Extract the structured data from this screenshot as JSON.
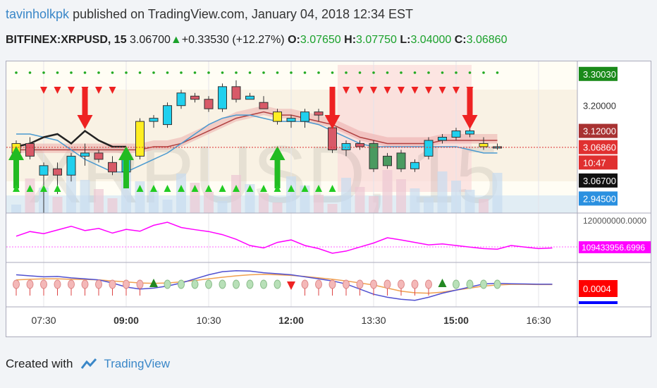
{
  "header": {
    "author": "tavinholkpk",
    "published": " published on TradingView.com, January 04, 2018 12:34 EST"
  },
  "symbol": {
    "name": "BITFINEX:XRPUSD, 15",
    "last": "3.06700",
    "change": "+0.33530 (+12.27%)",
    "open_label": "O:",
    "open": "3.07650",
    "high_label": "H:",
    "high": "3.07750",
    "low_label": "L:",
    "low": "3.04000",
    "close_label": "C:",
    "close": "3.06860"
  },
  "watermark": "XRPUSD, 15",
  "price_axis": {
    "labels": [
      {
        "text": "3.30030",
        "price": 3.3003,
        "style": "green"
      },
      {
        "text": "3.20000",
        "price": 3.2,
        "style": "plain"
      },
      {
        "text": "3.12000",
        "price": 3.12,
        "style": "darkred"
      },
      {
        "text": "3.06860",
        "price": 3.0686,
        "style": "red"
      },
      {
        "text": "10:47",
        "price": 3.02,
        "style": "red"
      },
      {
        "text": "3.06700",
        "price": 2.963,
        "style": "black"
      },
      {
        "text": "2.94500",
        "price": 2.906,
        "style": "blue"
      }
    ]
  },
  "volume_indicator": {
    "label": "120000000.0000",
    "value_label": "109433956.6996",
    "color": "#ff00ff",
    "values": [
      180,
      195,
      188,
      200,
      212,
      198,
      205,
      190,
      202,
      196,
      215,
      225,
      208,
      201,
      195,
      185,
      170,
      150,
      142,
      160,
      168,
      150,
      140,
      125,
      132,
      145,
      158,
      175,
      168,
      160,
      152,
      155,
      150,
      145,
      140,
      138,
      150,
      145,
      140,
      142
    ],
    "y_range": [
      100,
      250
    ]
  },
  "oscillator": {
    "value_label": "0.0004",
    "color": "#ff0000",
    "fast": [
      0.5,
      0.45,
      0.4,
      0.42,
      0.35,
      0.3,
      0.25,
      0.1,
      -0.1,
      -0.2,
      -0.15,
      -0.05,
      0.1,
      0.3,
      0.5,
      0.65,
      0.7,
      0.68,
      0.6,
      0.55,
      0.5,
      0.4,
      0.3,
      0.2,
      0.05,
      -0.2,
      -0.45,
      -0.6,
      -0.7,
      -0.75,
      -0.6,
      -0.4,
      -0.25,
      -0.1,
      0.05,
      0.08,
      0.06,
      0.05,
      0.04,
      0.04
    ],
    "slow": [
      0.25,
      0.28,
      0.3,
      0.3,
      0.28,
      0.27,
      0.25,
      0.2,
      0.15,
      0.1,
      0.08,
      0.1,
      0.15,
      0.22,
      0.3,
      0.38,
      0.45,
      0.5,
      0.52,
      0.5,
      0.47,
      0.42,
      0.35,
      0.28,
      0.2,
      0.1,
      0.0,
      -0.15,
      -0.3,
      -0.38,
      -0.4,
      -0.35,
      -0.25,
      -0.15,
      -0.05,
      0.0,
      0.03,
      0.03,
      0.02,
      0.02
    ],
    "y_range": [
      -1,
      1
    ]
  },
  "time_axis": {
    "labels": [
      {
        "text": "07:30",
        "bar": 2,
        "bold": false
      },
      {
        "text": "09:00",
        "bar": 8,
        "bold": true
      },
      {
        "text": "10:30",
        "bar": 14,
        "bold": false
      },
      {
        "text": "12:00",
        "bar": 20,
        "bold": true
      },
      {
        "text": "13:30",
        "bar": 26,
        "bold": false
      },
      {
        "text": "15:00",
        "bar": 32,
        "bold": true
      },
      {
        "text": "16:30",
        "bar": 38,
        "bold": false
      }
    ]
  },
  "chart_data": {
    "type": "candlestick",
    "symbol": "BITFINEX:XRPUSD",
    "interval": "15",
    "y_range": [
      2.86,
      3.34
    ],
    "candles": [
      {
        "o": 3.05,
        "h": 3.09,
        "l": 2.94,
        "c": 3.08
      },
      {
        "o": 3.08,
        "h": 3.1,
        "l": 3.03,
        "c": 3.04
      },
      {
        "o": 2.98,
        "h": 3.02,
        "l": 2.86,
        "c": 3.01
      },
      {
        "o": 3.0,
        "h": 3.02,
        "l": 2.92,
        "c": 2.98
      },
      {
        "o": 2.98,
        "h": 3.05,
        "l": 2.96,
        "c": 3.04
      },
      {
        "o": 3.04,
        "h": 3.08,
        "l": 3.01,
        "c": 3.05
      },
      {
        "o": 3.05,
        "h": 3.06,
        "l": 3.02,
        "c": 3.03
      },
      {
        "o": 3.02,
        "h": 3.04,
        "l": 2.98,
        "c": 2.99
      },
      {
        "o": 2.99,
        "h": 3.05,
        "l": 2.98,
        "c": 3.04
      },
      {
        "o": 3.04,
        "h": 3.16,
        "l": 3.03,
        "c": 3.15
      },
      {
        "o": 3.15,
        "h": 3.17,
        "l": 3.13,
        "c": 3.16
      },
      {
        "o": 3.14,
        "h": 3.21,
        "l": 3.13,
        "c": 3.2
      },
      {
        "o": 3.2,
        "h": 3.25,
        "l": 3.19,
        "c": 3.24
      },
      {
        "o": 3.23,
        "h": 3.24,
        "l": 3.21,
        "c": 3.22
      },
      {
        "o": 3.22,
        "h": 3.23,
        "l": 3.18,
        "c": 3.19
      },
      {
        "o": 3.19,
        "h": 3.27,
        "l": 3.18,
        "c": 3.26
      },
      {
        "o": 3.26,
        "h": 3.28,
        "l": 3.21,
        "c": 3.22
      },
      {
        "o": 3.22,
        "h": 3.24,
        "l": 3.22,
        "c": 3.23
      },
      {
        "o": 3.21,
        "h": 3.23,
        "l": 3.19,
        "c": 3.19
      },
      {
        "o": 3.18,
        "h": 3.19,
        "l": 3.14,
        "c": 3.15
      },
      {
        "o": 3.15,
        "h": 3.17,
        "l": 3.13,
        "c": 3.16
      },
      {
        "o": 3.15,
        "h": 3.19,
        "l": 3.13,
        "c": 3.18
      },
      {
        "o": 3.18,
        "h": 3.19,
        "l": 3.15,
        "c": 3.17
      },
      {
        "o": 3.13,
        "h": 3.14,
        "l": 3.05,
        "c": 3.06
      },
      {
        "o": 3.06,
        "h": 3.09,
        "l": 3.04,
        "c": 3.08
      },
      {
        "o": 3.08,
        "h": 3.09,
        "l": 3.06,
        "c": 3.07
      },
      {
        "o": 3.08,
        "h": 3.09,
        "l": 2.99,
        "c": 3.0
      },
      {
        "o": 3.04,
        "h": 3.05,
        "l": 3.0,
        "c": 3.01
      },
      {
        "o": 3.05,
        "h": 3.06,
        "l": 2.99,
        "c": 3.0
      },
      {
        "o": 3.0,
        "h": 3.03,
        "l": 2.99,
        "c": 3.02
      },
      {
        "o": 3.04,
        "h": 3.1,
        "l": 3.03,
        "c": 3.09
      },
      {
        "o": 3.09,
        "h": 3.11,
        "l": 3.08,
        "c": 3.1
      },
      {
        "o": 3.1,
        "h": 3.13,
        "l": 3.09,
        "c": 3.12
      },
      {
        "o": 3.11,
        "h": 3.13,
        "l": 3.1,
        "c": 3.12
      },
      {
        "o": 3.08,
        "h": 3.1,
        "l": 3.06,
        "c": 3.07
      },
      {
        "o": 3.07,
        "h": 3.08,
        "l": 3.06,
        "c": 3.07
      }
    ],
    "yellow_candles": [
      0,
      9,
      19,
      34
    ],
    "ma_black": [
      3.07,
      3.08,
      3.1,
      3.11,
      3.08,
      3.12,
      3.09,
      3.07,
      3.07
    ],
    "ma_blue": [
      3.11,
      3.11,
      3.1,
      3.09,
      3.06,
      3.03,
      3.01,
      2.99,
      2.99,
      3.01,
      3.03,
      3.05,
      3.08,
      3.11,
      3.14,
      3.16,
      3.17,
      3.17,
      3.16,
      3.15,
      3.15,
      3.15,
      3.14,
      3.12,
      3.1,
      3.08,
      3.07,
      3.07,
      3.07,
      3.07,
      3.07,
      3.07,
      3.07,
      3.06,
      3.05,
      3.05
    ],
    "ma_red": [
      3.06,
      3.06,
      3.06,
      3.06,
      3.06,
      3.06,
      3.06,
      3.06,
      3.06,
      3.06,
      3.07,
      3.07,
      3.08,
      3.1,
      3.12,
      3.14,
      3.16,
      3.17,
      3.18,
      3.17,
      3.17,
      3.16,
      3.15,
      3.14,
      3.12,
      3.1,
      3.09,
      3.08,
      3.08,
      3.08,
      3.08,
      3.09,
      3.09,
      3.09,
      3.09,
      3.09
    ],
    "sell_arrows": [
      5,
      23,
      33
    ],
    "buy_arrows": [
      0,
      8,
      19
    ],
    "hline": 3.068
  }
}
